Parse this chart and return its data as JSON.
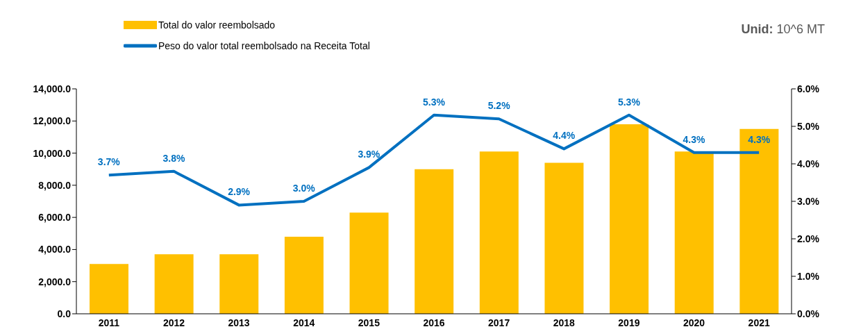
{
  "chart_data": {
    "type": "bar",
    "categories": [
      "2011",
      "2012",
      "2013",
      "2014",
      "2015",
      "2016",
      "2017",
      "2018",
      "2019",
      "2020",
      "2021"
    ],
    "series": [
      {
        "name": "Total do valor reembolsado",
        "color": "#ffc000",
        "values": [
          3100,
          3700,
          3700,
          4800,
          6300,
          9000,
          10100,
          9400,
          11800,
          10100,
          11500
        ]
      },
      {
        "name": "Peso do valor total reembolsado na Receita Total",
        "type": "line",
        "axis": "y2",
        "color": "#0070c0",
        "values": [
          3.7,
          3.8,
          2.9,
          3.0,
          3.9,
          5.3,
          5.2,
          4.4,
          5.3,
          4.3,
          4.3
        ],
        "value_labels": [
          "3.7%",
          "3.8%",
          "2.9%",
          "3.0%",
          "3.9%",
          "5.3%",
          "5.2%",
          "4.4%",
          "5.3%",
          "4.3%",
          "4.3%"
        ]
      }
    ],
    "ylim": [
      0,
      14000
    ],
    "yticks": [
      {
        "value": 0,
        "label": "0.0"
      },
      {
        "value": 2000,
        "label": "2,000.0"
      },
      {
        "value": 4000,
        "label": "4,000.0"
      },
      {
        "value": 6000,
        "label": "6,000.0"
      },
      {
        "value": 8000,
        "label": "8,000.0"
      },
      {
        "value": 10000,
        "label": "10,000.0"
      },
      {
        "value": 12000,
        "label": "12,000.0"
      },
      {
        "value": 14000,
        "label": "14,000.0"
      }
    ],
    "y2lim": [
      0,
      6
    ],
    "y2ticks": [
      {
        "value": 0,
        "label": "0.0%"
      },
      {
        "value": 1,
        "label": "1.0%"
      },
      {
        "value": 2,
        "label": "2.0%"
      },
      {
        "value": 3,
        "label": "3.0%"
      },
      {
        "value": 4,
        "label": "4.0%"
      },
      {
        "value": 5,
        "label": "5.0%"
      },
      {
        "value": 6,
        "label": "6.0%"
      }
    ],
    "annotations": [
      "Unid: 10^6 MT"
    ],
    "legend": "top left",
    "grid": false,
    "marker": "none",
    "line_style": "solid"
  }
}
